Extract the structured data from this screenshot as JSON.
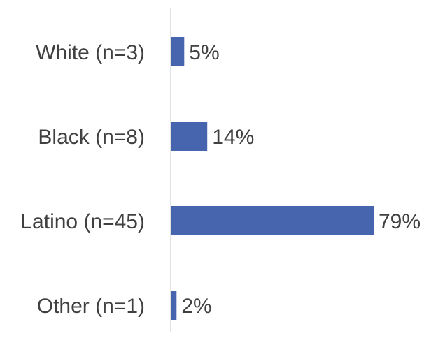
{
  "chart_data": {
    "type": "bar",
    "orientation": "horizontal",
    "categories": [
      "White (n=3)",
      "Black (n=8)",
      "Latino (n=45)",
      "Other (n=1)"
    ],
    "values": [
      5,
      14,
      79,
      2
    ],
    "data_labels": [
      "5%",
      "14%",
      "79%",
      "2%"
    ],
    "value_unit": "%",
    "xlim": [
      0,
      79
    ],
    "title": "",
    "xlabel": "",
    "ylabel": "",
    "grid": false,
    "legend": "none"
  },
  "colors": {
    "bar": "#4765ae",
    "axis": "#d9d9d9",
    "text": "#404040"
  }
}
